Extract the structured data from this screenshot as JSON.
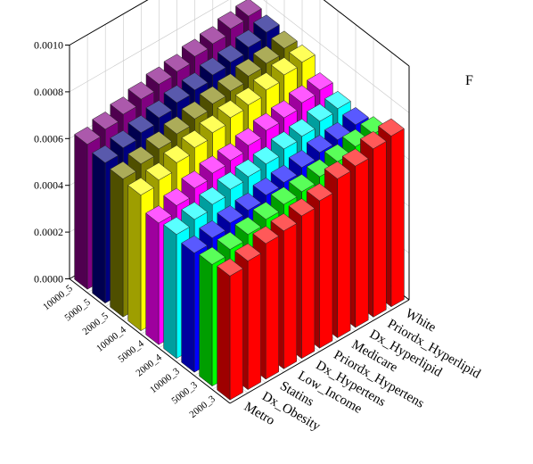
{
  "chart_data": {
    "type": "bar",
    "variant": "3d-grouped-bar",
    "panel_label": "F",
    "title": "",
    "xlabel": "",
    "ylabel": "",
    "zlabel": "",
    "zlim": [
      0,
      0.001
    ],
    "z_ticks": [
      "0.0000",
      "0.0002",
      "0.0004",
      "0.0006",
      "0.0008",
      "0.0010"
    ],
    "grid": true,
    "categories": [
      "Metro",
      "Dx_Obesity",
      "Statins",
      "Low_Income",
      "Dx_Hypertens",
      "Priordx_Hypertens",
      "Medicare",
      "Dx_Hyperlipid",
      "Priordx_Hyperlipid",
      "White"
    ],
    "series": [
      {
        "label": "2000_3",
        "color": "#ff0000",
        "values": [
          0.00053,
          0.00055,
          0.00058,
          0.00059,
          0.00061,
          0.00063,
          0.00068,
          0.00069,
          0.00072,
          0.00073
        ]
      },
      {
        "label": "5000_3",
        "color": "#00ff00",
        "values": [
          0.00052,
          0.00054,
          0.00056,
          0.00058,
          0.0006,
          0.00061,
          0.00063,
          0.00065,
          0.00067,
          0.00068
        ]
      },
      {
        "label": "10000_3",
        "color": "#0000ff",
        "values": [
          0.00051,
          0.00053,
          0.00055,
          0.00056,
          0.00058,
          0.00059,
          0.00061,
          0.00063,
          0.00064,
          0.00066
        ]
      },
      {
        "label": "2000_4",
        "color": "#00ffff",
        "values": [
          0.00053,
          0.00055,
          0.00057,
          0.00059,
          0.0006,
          0.00061,
          0.00063,
          0.00064,
          0.00066,
          0.00067
        ]
      },
      {
        "label": "5000_4",
        "color": "#ff00ff",
        "values": [
          0.00052,
          0.00055,
          0.00058,
          0.0006,
          0.00061,
          0.00063,
          0.00065,
          0.00066,
          0.00068,
          0.00069
        ]
      },
      {
        "label": "10000_4",
        "color": "#ffff00",
        "values": [
          0.00058,
          0.0006,
          0.00063,
          0.00065,
          0.00067,
          0.00069,
          0.0007,
          0.00072,
          0.00074,
          0.00075
        ]
      },
      {
        "label": "2000_5",
        "color": "#808000",
        "values": [
          0.00059,
          0.00061,
          0.00063,
          0.00065,
          0.00067,
          0.00069,
          0.0007,
          0.00072,
          0.00073,
          0.00075
        ]
      },
      {
        "label": "5000_5",
        "color": "#000080",
        "values": [
          0.0006,
          0.00062,
          0.00064,
          0.00066,
          0.00068,
          0.00069,
          0.00071,
          0.00072,
          0.00074,
          0.00076
        ]
      },
      {
        "label": "10000_5",
        "color": "#800080",
        "values": [
          0.00062,
          0.00064,
          0.00066,
          0.00068,
          0.0007,
          0.00071,
          0.00073,
          0.00074,
          0.00076,
          0.00077
        ]
      }
    ]
  }
}
